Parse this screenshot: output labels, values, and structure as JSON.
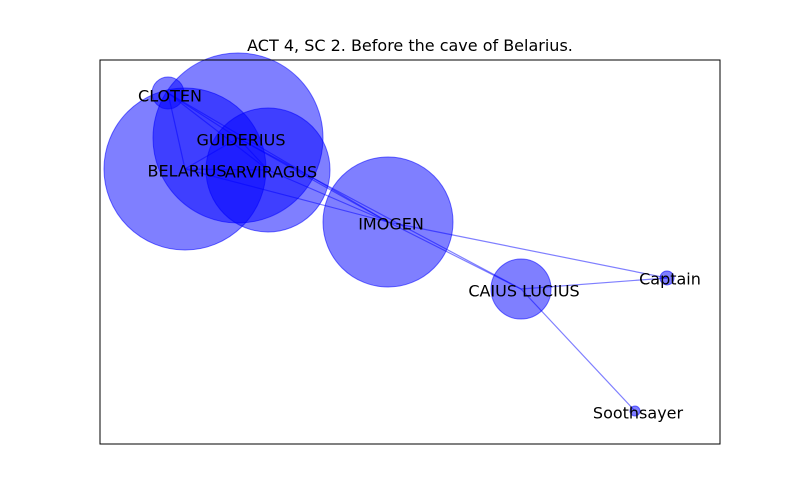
{
  "title": "ACT 4, SC 2. Before the cave of Belarius.",
  "colors": {
    "node_fill": "#0000ff",
    "node_opacity": 0.5,
    "edge_stroke": "#0000ff",
    "edge_opacity": 0.5,
    "frame": "#000000",
    "background": "#ffffff"
  },
  "nodes": [
    {
      "id": "cloten",
      "label": "CLOTEN"
    },
    {
      "id": "guiderius",
      "label": "GUIDERIUS"
    },
    {
      "id": "belarius",
      "label": "BELARIUS"
    },
    {
      "id": "arviragus",
      "label": "ARVIRAGUS"
    },
    {
      "id": "imogen",
      "label": "IMOGEN"
    },
    {
      "id": "caius-lucius",
      "label": "CAIUS LUCIUS"
    },
    {
      "id": "captain",
      "label": "Captain"
    },
    {
      "id": "soothsayer",
      "label": "Soothsayer"
    }
  ],
  "edges": [
    {
      "source": "cloten",
      "target": "guiderius"
    },
    {
      "source": "cloten",
      "target": "belarius"
    },
    {
      "source": "cloten",
      "target": "arviragus"
    },
    {
      "source": "cloten",
      "target": "imogen"
    },
    {
      "source": "guiderius",
      "target": "belarius"
    },
    {
      "source": "guiderius",
      "target": "arviragus"
    },
    {
      "source": "guiderius",
      "target": "imogen"
    },
    {
      "source": "guiderius",
      "target": "caius-lucius"
    },
    {
      "source": "belarius",
      "target": "arviragus"
    },
    {
      "source": "belarius",
      "target": "imogen"
    },
    {
      "source": "arviragus",
      "target": "imogen"
    },
    {
      "source": "imogen",
      "target": "captain"
    },
    {
      "source": "imogen",
      "target": "caius-lucius"
    },
    {
      "source": "caius-lucius",
      "target": "captain"
    },
    {
      "source": "caius-lucius",
      "target": "soothsayer"
    }
  ]
}
